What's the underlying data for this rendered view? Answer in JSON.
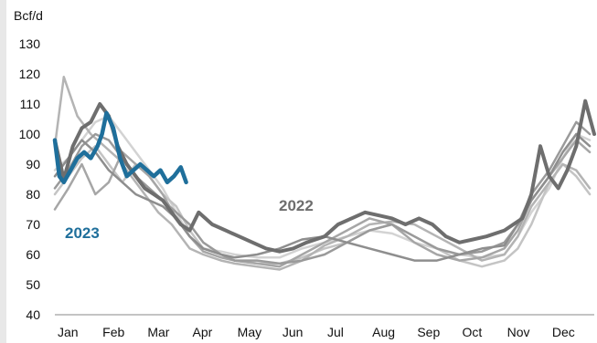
{
  "chart_data": {
    "type": "line",
    "title": "",
    "y_unit": "Bcf/d",
    "xlabel": "",
    "ylabel": "",
    "ylim": [
      40,
      130
    ],
    "y_ticks": [
      "40",
      "50",
      "60",
      "70",
      "80",
      "90",
      "100",
      "110",
      "120",
      "130"
    ],
    "x_ticks": [
      "Jan",
      "Feb",
      "Mar",
      "Apr",
      "May",
      "Jun",
      "Jul",
      "Aug",
      "Sep",
      "Oct",
      "Nov",
      "Dec"
    ],
    "grid": false,
    "legend": "none",
    "annotations": [
      {
        "text": "2022",
        "color": "#6e6e6e"
      },
      {
        "text": "2023",
        "color": "#1f6f9b"
      }
    ],
    "x_unit_note": "x values are months (1 = start of Jan, 13 = end of Dec)",
    "series": [
      {
        "color": "#d3d3d3",
        "width": 2.5,
        "x": [
          1.0,
          1.3,
          1.6,
          1.9,
          2.2,
          2.5,
          2.8,
          3.1,
          3.4,
          3.7,
          4.0,
          4.3,
          4.7,
          5.0,
          5.5,
          6.0,
          6.5,
          7.0,
          7.5,
          8.0,
          8.5,
          9.0,
          9.5,
          10.0,
          10.5,
          11.0,
          11.3,
          11.6,
          12.0,
          12.3,
          12.6,
          12.9
        ],
        "y": [
          88,
          92,
          98,
          104,
          106,
          100,
          94,
          88,
          82,
          74,
          66,
          62,
          61,
          60,
          59,
          59,
          62,
          64,
          66,
          68,
          67,
          64,
          62,
          60,
          59,
          60,
          66,
          74,
          82,
          92,
          100,
          98
        ]
      },
      {
        "color": "#c4c4c4",
        "width": 2.5,
        "x": [
          1.0,
          1.3,
          1.6,
          1.9,
          2.2,
          2.5,
          2.8,
          3.1,
          3.4,
          3.7,
          4.0,
          4.3,
          4.7,
          5.0,
          5.5,
          6.0,
          6.5,
          7.0,
          7.5,
          8.0,
          8.5,
          9.0,
          9.5,
          10.0,
          10.5,
          11.0,
          11.3,
          11.6,
          12.0,
          12.3,
          12.6,
          12.9
        ],
        "y": [
          80,
          86,
          92,
          96,
          90,
          84,
          90,
          86,
          80,
          76,
          68,
          62,
          60,
          58,
          57,
          57,
          59,
          62,
          64,
          68,
          70,
          66,
          62,
          58,
          56,
          58,
          62,
          70,
          84,
          90,
          86,
          80
        ]
      },
      {
        "color": "#b4b4b4",
        "width": 2.5,
        "x": [
          1.0,
          1.2,
          1.5,
          1.8,
          2.1,
          2.4,
          2.7,
          3.0,
          3.3,
          3.6,
          4.0,
          4.3,
          4.7,
          5.0,
          5.5,
          6.0,
          6.5,
          7.0,
          7.5,
          8.0,
          8.5,
          9.0,
          9.5,
          10.0,
          10.5,
          11.0,
          11.3,
          11.6,
          12.0,
          12.3,
          12.6,
          12.9
        ],
        "y": [
          96,
          119,
          106,
          100,
          96,
          92,
          86,
          80,
          74,
          70,
          62,
          60,
          58,
          57,
          56,
          55,
          58,
          63,
          66,
          70,
          71,
          70,
          66,
          62,
          58,
          60,
          66,
          76,
          84,
          90,
          88,
          82
        ]
      },
      {
        "color": "#a6a6a6",
        "width": 2.5,
        "x": [
          1.0,
          1.3,
          1.6,
          1.9,
          2.2,
          2.5,
          2.8,
          3.1,
          3.4,
          3.7,
          4.0,
          4.3,
          4.7,
          5.0,
          5.5,
          6.0,
          6.5,
          7.0,
          7.5,
          8.0,
          8.5,
          9.0,
          9.5,
          10.0,
          10.5,
          11.0,
          11.3,
          11.6,
          12.0,
          12.3,
          12.6,
          12.9
        ],
        "y": [
          75,
          82,
          90,
          80,
          84,
          94,
          90,
          86,
          80,
          72,
          66,
          61,
          59,
          58,
          57,
          56,
          60,
          64,
          68,
          72,
          70,
          64,
          60,
          58,
          59,
          62,
          68,
          78,
          86,
          92,
          98,
          94
        ]
      },
      {
        "color": "#9a9a9a",
        "width": 2.5,
        "x": [
          1.0,
          1.3,
          1.6,
          1.9,
          2.2,
          2.5,
          2.8,
          3.1,
          3.4,
          3.7,
          4.0,
          4.3,
          4.7,
          5.0,
          5.5,
          6.0,
          6.5,
          7.0,
          7.5,
          8.0,
          8.5,
          9.0,
          9.5,
          10.0,
          10.5,
          11.0,
          11.3,
          11.6,
          12.0,
          12.3,
          12.6,
          12.9
        ],
        "y": [
          82,
          88,
          96,
          100,
          98,
          92,
          86,
          82,
          78,
          74,
          70,
          64,
          60,
          58,
          58,
          57,
          58,
          60,
          64,
          68,
          70,
          66,
          62,
          60,
          61,
          64,
          70,
          80,
          88,
          96,
          104,
          100
        ]
      },
      {
        "color": "#8e8e8e",
        "width": 2.5,
        "x": [
          1.0,
          1.3,
          1.6,
          1.9,
          2.2,
          2.5,
          2.8,
          3.1,
          3.4,
          3.7,
          4.0,
          4.3,
          4.7,
          5.0,
          5.5,
          6.0,
          6.5,
          7.0,
          7.5,
          8.0,
          8.5,
          9.0,
          9.5,
          10.0,
          10.5,
          11.0,
          11.3,
          11.6,
          12.0,
          12.3,
          12.6,
          12.9
        ],
        "y": [
          86,
          92,
          98,
          94,
          88,
          84,
          80,
          78,
          76,
          72,
          66,
          62,
          60,
          59,
          60,
          62,
          65,
          66,
          64,
          62,
          60,
          58,
          58,
          60,
          62,
          63,
          70,
          78,
          86,
          94,
          100,
          96
        ]
      },
      {
        "name_hidden": "",
        "color": "#6e6e6e",
        "width": 4,
        "x": [
          1.0,
          1.2,
          1.4,
          1.6,
          1.8,
          2.0,
          2.2,
          2.4,
          2.6,
          2.8,
          3.0,
          3.2,
          3.4,
          3.6,
          3.8,
          4.0,
          4.2,
          4.5,
          4.8,
          5.1,
          5.4,
          5.7,
          6.0,
          6.3,
          6.6,
          7.0,
          7.3,
          7.6,
          7.9,
          8.2,
          8.5,
          8.8,
          9.1,
          9.4,
          9.7,
          10.0,
          10.3,
          10.6,
          11.0,
          11.2,
          11.4,
          11.6,
          11.8,
          12.0,
          12.2,
          12.4,
          12.6,
          12.8,
          13.0
        ],
        "y": [
          98,
          85,
          96,
          102,
          104,
          110,
          106,
          96,
          90,
          86,
          82,
          80,
          78,
          74,
          70,
          68,
          74,
          70,
          68,
          66,
          64,
          62,
          61,
          62,
          64,
          66,
          70,
          72,
          74,
          73,
          72,
          70,
          72,
          70,
          66,
          64,
          65,
          66,
          68,
          70,
          72,
          80,
          96,
          86,
          82,
          88,
          96,
          111,
          100
        ]
      },
      {
        "color": "#1f6f9b",
        "width": 4.5,
        "x": [
          1.0,
          1.1,
          1.2,
          1.35,
          1.5,
          1.65,
          1.8,
          1.95,
          2.05,
          2.15,
          2.3,
          2.45,
          2.6,
          2.75,
          2.9,
          3.05,
          3.2,
          3.35,
          3.5,
          3.65,
          3.8,
          3.92
        ],
        "y": [
          98,
          86,
          84,
          88,
          92,
          94,
          92,
          96,
          100,
          107,
          102,
          92,
          86,
          88,
          90,
          88,
          86,
          88,
          84,
          86,
          89,
          84
        ]
      }
    ]
  }
}
